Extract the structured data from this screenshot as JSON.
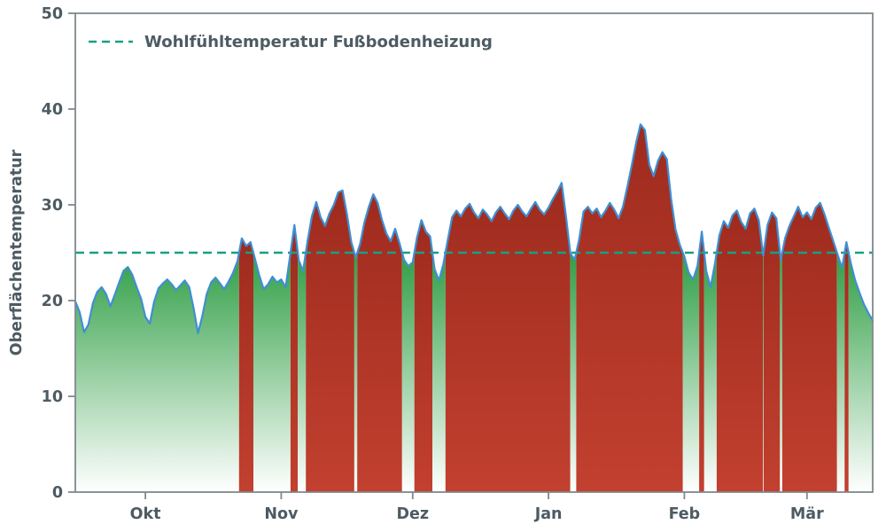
{
  "chart_data": {
    "type": "area",
    "title": "",
    "xlabel": "",
    "ylabel": "Oberflächentemperatur",
    "ylim": [
      0,
      50
    ],
    "yticks": [
      0,
      10,
      20,
      30,
      40,
      50
    ],
    "grid": false,
    "x_unit": "day",
    "x_tick_labels": [
      "Okt",
      "Nov",
      "Dez",
      "Jan",
      "Feb",
      "Mär"
    ],
    "x_tick_day_indices": [
      16,
      47,
      77,
      108,
      139,
      167
    ],
    "legend": {
      "position": "upper-left",
      "entries": [
        {
          "label": "Wohlfühltemperatur Fußbodenheizung",
          "style": "dashed",
          "color": "#16a085"
        }
      ]
    },
    "threshold": {
      "value": 25,
      "label": "Wohlfühltemperatur Fußbodenheizung"
    },
    "series": [
      {
        "name": "Oberflächentemperatur",
        "values": [
          19.9,
          18.8,
          16.7,
          17.5,
          19.7,
          20.9,
          21.4,
          20.7,
          19.4,
          20.6,
          21.9,
          23.1,
          23.5,
          22.7,
          21.4,
          20.2,
          18.3,
          17.6,
          19.9,
          21.3,
          21.8,
          22.2,
          21.7,
          21.1,
          21.6,
          22.1,
          21.4,
          19.2,
          16.6,
          18.4,
          20.7,
          21.9,
          22.4,
          21.8,
          21.2,
          22.0,
          22.9,
          24.1,
          26.5,
          25.7,
          26.1,
          24.4,
          22.6,
          21.2,
          21.7,
          22.5,
          21.9,
          22.2,
          21.4,
          24.6,
          27.9,
          24.2,
          23.1,
          26.2,
          28.8,
          30.3,
          28.7,
          27.8,
          29.1,
          30.0,
          31.3,
          31.5,
          29.0,
          26.1,
          24.5,
          25.9,
          28.2,
          29.8,
          31.1,
          30.2,
          28.4,
          27.0,
          26.2,
          27.5,
          26.0,
          24.3,
          23.6,
          24.0,
          26.6,
          28.4,
          27.2,
          26.7,
          23.3,
          22.1,
          23.8,
          26.3,
          28.7,
          29.4,
          28.8,
          29.6,
          30.1,
          29.2,
          28.6,
          29.5,
          29.0,
          28.3,
          29.2,
          29.8,
          29.1,
          28.5,
          29.4,
          30.0,
          29.3,
          28.8,
          29.6,
          30.3,
          29.5,
          29.0,
          29.7,
          30.6,
          31.4,
          32.3,
          28.8,
          24.9,
          24.3,
          26.4,
          29.3,
          29.8,
          29.1,
          29.6,
          28.7,
          29.4,
          30.2,
          29.5,
          28.6,
          29.8,
          31.9,
          34.1,
          36.5,
          38.4,
          37.8,
          34.2,
          33.0,
          34.6,
          35.5,
          34.8,
          30.6,
          27.4,
          25.8,
          24.6,
          22.9,
          22.2,
          23.6,
          27.2,
          23.1,
          21.4,
          23.9,
          26.8,
          28.3,
          27.6,
          28.9,
          29.4,
          28.2,
          27.5,
          29.1,
          29.6,
          28.4,
          24.7,
          27.9,
          29.2,
          28.6,
          24.2,
          26.5,
          27.8,
          28.8,
          29.8,
          28.7,
          29.2,
          28.5,
          29.7,
          30.2,
          29.0,
          27.6,
          26.2,
          24.8,
          23.4,
          26.1,
          23.9,
          22.1,
          20.8,
          19.6,
          18.7,
          17.9
        ]
      }
    ],
    "colors": {
      "line": "#3f8fd2",
      "threshold": "#16a085",
      "area_above_top": "#9e2b1e",
      "area_above_bottom": "#c2402f",
      "area_below_top": "#2f9e44",
      "area_below_bottom": "#ffffff",
      "axis_text": "#4d5b63",
      "spine": "#7f898d",
      "background": "#ffffff"
    }
  }
}
